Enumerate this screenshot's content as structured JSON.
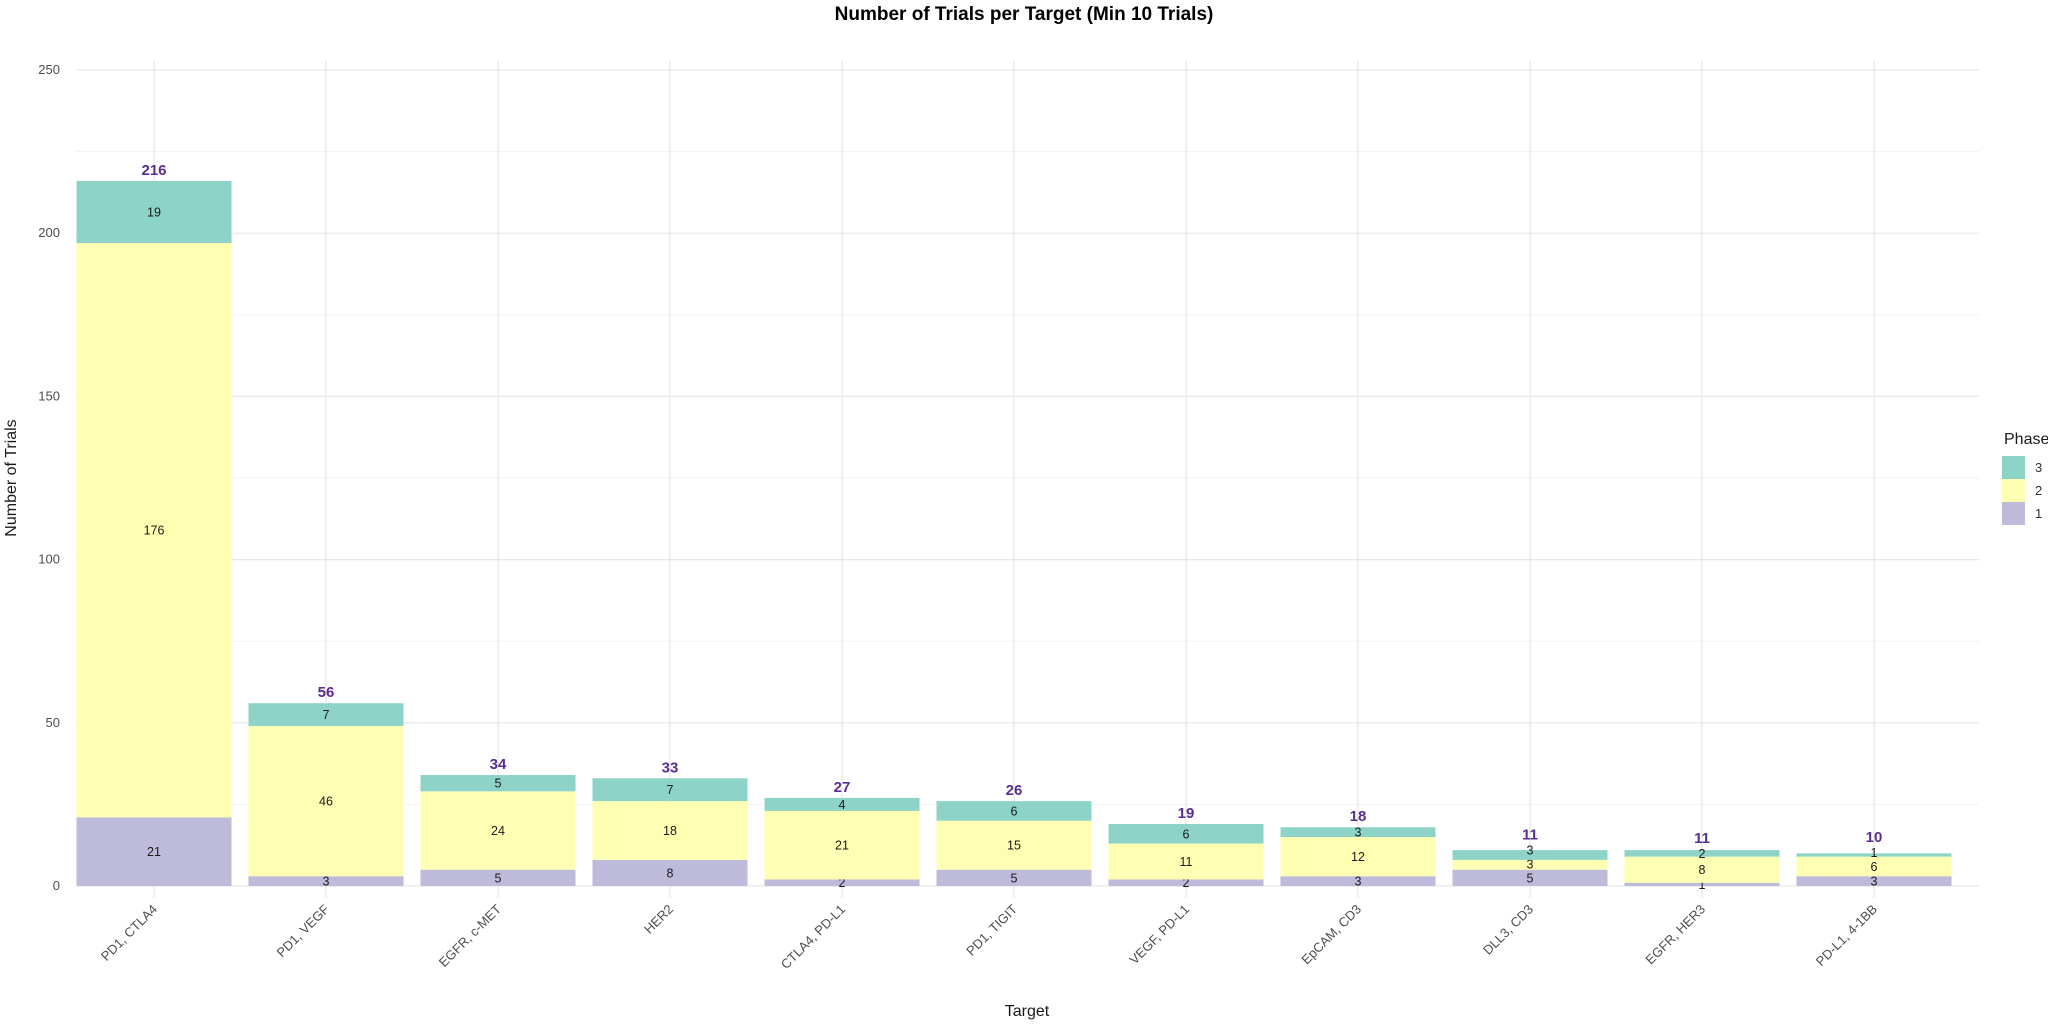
{
  "chart_data": {
    "type": "bar",
    "stacked": true,
    "title": "Number of Trials per Target (Min 10 Trials)",
    "xlabel": "Target",
    "ylabel": "Number of Trials",
    "ylim": [
      0,
      250
    ],
    "yticks": [
      0,
      50,
      100,
      150,
      200,
      250
    ],
    "grid": true,
    "legend": {
      "title": "Phase",
      "placement": "right",
      "entries": [
        "3",
        "2",
        "1"
      ]
    },
    "categories": [
      "PD1, CTLA4",
      "PD1, VEGF",
      "EGFR, c-MET",
      "HER2",
      "CTLA4, PD-L1",
      "PD1, TIGIT",
      "VEGF, PD-L1",
      "EpCAM, CD3",
      "DLL3, CD3",
      "EGFR, HER3",
      "PD-L1, 4-1BB"
    ],
    "series": [
      {
        "name": "1",
        "color": "#bebada",
        "values": [
          21,
          3,
          5,
          8,
          2,
          5,
          2,
          3,
          5,
          1,
          3
        ]
      },
      {
        "name": "2",
        "color": "#ffffb3",
        "values": [
          176,
          46,
          24,
          18,
          21,
          15,
          11,
          12,
          3,
          8,
          6
        ]
      },
      {
        "name": "3",
        "color": "#8dd3c7",
        "values": [
          19,
          7,
          5,
          7,
          4,
          6,
          6,
          3,
          3,
          2,
          1
        ]
      }
    ],
    "totals": [
      216,
      56,
      34,
      33,
      27,
      26,
      19,
      18,
      11,
      11,
      10
    ]
  }
}
